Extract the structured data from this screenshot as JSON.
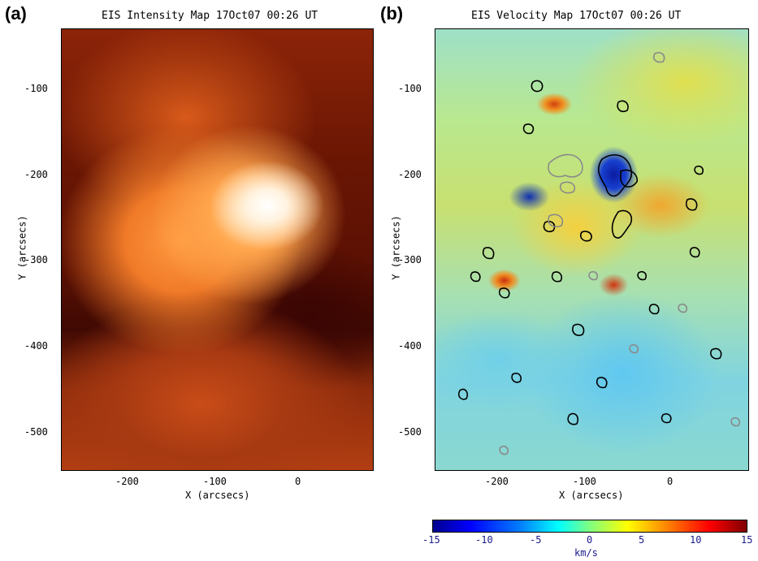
{
  "panel_a": {
    "label": "(a)",
    "title": "EIS Intensity Map 17Oct07 00:26 UT",
    "xlabel": "X (arcsecs)",
    "ylabel": "Y (arcsecs)",
    "xticks": [
      "-200",
      "-100",
      "0"
    ],
    "yticks": [
      "-100",
      "-200",
      "-300",
      "-400",
      "-500"
    ]
  },
  "panel_b": {
    "label": "(b)",
    "title": "EIS Velocity Map 17Oct07 00:26 UT",
    "xlabel": "X (arcsecs)",
    "ylabel": "Y (arcsecs)",
    "xticks": [
      "-200",
      "-100",
      "0"
    ],
    "yticks": [
      "-100",
      "-200",
      "-300",
      "-400",
      "-500"
    ]
  },
  "colorbar": {
    "ticks": [
      "-15",
      "-10",
      "-5",
      "0",
      "5",
      "10",
      "15"
    ],
    "unit": "km/s",
    "range": [
      -15,
      15
    ]
  },
  "colors": {
    "intensity_dark": "#3f0903",
    "intensity_bright": "#ffffff",
    "velocity_blue": "#0000ff",
    "velocity_red": "#ff0000",
    "contour_black": "#000000",
    "contour_gray": "#808080"
  }
}
